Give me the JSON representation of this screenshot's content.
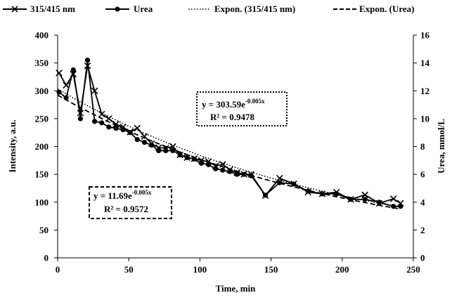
{
  "chart_data": {
    "type": "line",
    "xlabel": "Time, min",
    "ylabel_left": "Intensity, a.u.",
    "ylabel_right": "Urea, mmol/L",
    "xlim": [
      0,
      250
    ],
    "ylim_left": [
      0,
      400
    ],
    "ylim_right": [
      0,
      16
    ],
    "x_ticks": [
      "0",
      "50",
      "100",
      "150",
      "200",
      "250"
    ],
    "y_left_ticks": [
      "0",
      "50",
      "100",
      "150",
      "200",
      "250",
      "300",
      "350",
      "400"
    ],
    "y_right_ticks": [
      "0",
      "2",
      "4",
      "6",
      "8",
      "10",
      "12",
      "14",
      "16"
    ],
    "grid": false,
    "legend_position": "top",
    "legend": {
      "intensity": "315/415 nm",
      "urea": "Urea",
      "intensity_fit": "Expon. (315/415 nm)",
      "urea_fit": "Expon. (Urea)"
    },
    "series": [
      {
        "name": "315/415 nm",
        "axis": "left",
        "marker": "x",
        "x": [
          1,
          6,
          11,
          16,
          21,
          26,
          31,
          36,
          41,
          46,
          51,
          56,
          61,
          66,
          71,
          76,
          81,
          86,
          91,
          96,
          101,
          106,
          111,
          116,
          121,
          126,
          131,
          136,
          146,
          156,
          166,
          176,
          186,
          196,
          206,
          216,
          226,
          236,
          241
        ],
        "values": [
          332,
          310,
          330,
          260,
          345,
          300,
          258,
          250,
          240,
          235,
          226,
          233,
          218,
          205,
          198,
          197,
          200,
          185,
          180,
          178,
          175,
          173,
          165,
          168,
          158,
          153,
          150,
          150,
          112,
          143,
          133,
          118,
          115,
          118,
          105,
          113,
          98,
          106,
          98
        ]
      },
      {
        "name": "Urea",
        "axis": "right",
        "marker": "circle",
        "x": [
          1,
          6,
          11,
          16,
          21,
          26,
          31,
          36,
          41,
          46,
          51,
          56,
          61,
          66,
          71,
          76,
          81,
          86,
          91,
          96,
          101,
          106,
          111,
          116,
          121,
          126,
          131,
          136,
          146,
          156,
          166,
          176,
          186,
          196,
          206,
          216,
          226,
          236,
          241
        ],
        "values": [
          11.9,
          11.5,
          13.5,
          10.0,
          14.2,
          9.8,
          9.7,
          9.4,
          9.3,
          9.2,
          9.0,
          8.5,
          8.3,
          8.1,
          7.7,
          7.7,
          7.7,
          7.4,
          7.2,
          7.1,
          6.8,
          6.7,
          6.4,
          6.3,
          6.2,
          6.0,
          6.0,
          5.9,
          4.5,
          5.4,
          5.3,
          4.8,
          4.6,
          4.6,
          4.2,
          4.2,
          4.0,
          3.7,
          3.7
        ]
      },
      {
        "name": "Expon. (315/415 nm)",
        "axis": "left",
        "style": "dotted",
        "fit": {
          "a": 303.59,
          "b": -0.005
        }
      },
      {
        "name": "Expon. (Urea)",
        "axis": "right",
        "style": "dashed",
        "fit": {
          "a": 11.69,
          "b": -0.005
        }
      }
    ],
    "annotations": [
      {
        "id": "intensity_eq",
        "line1_base": "y = 303.59e",
        "line1_exp": "-0.005x",
        "line2": "R² = 0.9478"
      },
      {
        "id": "urea_eq",
        "line1_base": "y = 11.69e",
        "line1_exp": "-0.005x",
        "line2": "R² = 0.9572"
      }
    ]
  }
}
